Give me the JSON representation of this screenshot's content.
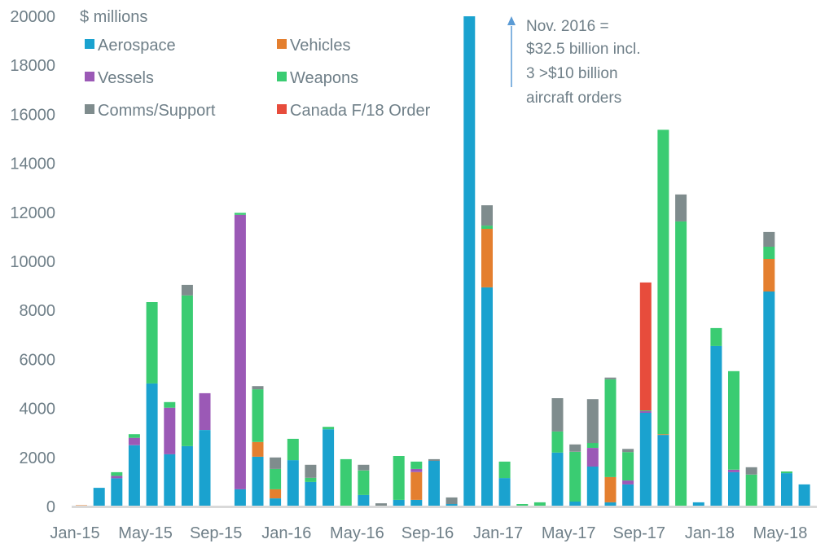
{
  "chart_data": {
    "type": "bar",
    "stacked": true,
    "title": "",
    "unit_label": "$ millions",
    "xlabel": "",
    "ylabel": "$ millions",
    "ylim": [
      0,
      20000
    ],
    "yticks": [
      0,
      2000,
      4000,
      6000,
      8000,
      10000,
      12000,
      14000,
      16000,
      18000,
      20000
    ],
    "grid": false,
    "legend_position": "top-left",
    "categories": [
      "Jan-15",
      "Feb-15",
      "Mar-15",
      "Apr-15",
      "May-15",
      "Jun-15",
      "Jul-15",
      "Aug-15",
      "Sep-15",
      "Oct-15",
      "Nov-15",
      "Dec-15",
      "Jan-16",
      "Feb-16",
      "Mar-16",
      "Apr-16",
      "May-16",
      "Jun-16",
      "Jul-16",
      "Aug-16",
      "Sep-16",
      "Oct-16",
      "Nov-16",
      "Dec-16",
      "Jan-17",
      "Feb-17",
      "Mar-17",
      "Apr-17",
      "May-17",
      "Jun-17",
      "Jul-17",
      "Aug-17",
      "Sep-17",
      "Oct-17",
      "Nov-17",
      "Dec-17",
      "Jan-18",
      "Feb-18",
      "Mar-18",
      "Apr-18",
      "May-18",
      "Jun-18"
    ],
    "xtick_labels": [
      "Jan-15",
      "May-15",
      "Sep-15",
      "Jan-16",
      "May-16",
      "Sep-16",
      "Jan-17",
      "May-17",
      "Sep-17",
      "Jan-18",
      "May-18"
    ],
    "series": [
      {
        "name": "Aerospace",
        "color": "#1aa2cf",
        "values": [
          0,
          760,
          1150,
          2500,
          5020,
          2130,
          2460,
          3120,
          0,
          700,
          2030,
          330,
          1890,
          1000,
          3150,
          0,
          470,
          0,
          270,
          270,
          1860,
          100,
          32500,
          8940,
          1160,
          0,
          0,
          2200,
          200,
          1630,
          170,
          900,
          3820,
          2920,
          0,
          170,
          6550,
          1400,
          0,
          8770,
          1360,
          900
        ]
      },
      {
        "name": "Vehicles",
        "color": "#e47f2f",
        "values": [
          50,
          0,
          0,
          0,
          0,
          0,
          0,
          0,
          0,
          0,
          600,
          370,
          0,
          0,
          0,
          0,
          0,
          0,
          0,
          1130,
          0,
          0,
          0,
          2390,
          0,
          0,
          0,
          0,
          0,
          0,
          1030,
          0,
          0,
          30,
          0,
          0,
          0,
          0,
          0,
          1330,
          0,
          0
        ]
      },
      {
        "name": "Vessels",
        "color": "#9b59b6",
        "values": [
          0,
          0,
          100,
          300,
          0,
          1900,
          0,
          1500,
          0,
          11200,
          0,
          0,
          0,
          0,
          0,
          0,
          0,
          0,
          0,
          130,
          0,
          0,
          0,
          0,
          0,
          0,
          0,
          0,
          0,
          760,
          0,
          160,
          70,
          0,
          0,
          0,
          0,
          100,
          0,
          0,
          0,
          0
        ]
      },
      {
        "name": "Weapons",
        "color": "#3acc72",
        "values": [
          0,
          0,
          150,
          150,
          3320,
          230,
          6150,
          0,
          0,
          80,
          2150,
          830,
          870,
          170,
          100,
          1930,
          1000,
          0,
          1790,
          300,
          0,
          0,
          0,
          130,
          670,
          100,
          170,
          860,
          2030,
          200,
          3990,
          1160,
          30,
          12420,
          11630,
          0,
          730,
          4020,
          1300,
          500,
          70,
          0
        ]
      },
      {
        "name": "Comms/Support",
        "color": "#7f8c8d",
        "values": [
          0,
          0,
          0,
          0,
          0,
          0,
          430,
          0,
          0,
          0,
          130,
          470,
          0,
          530,
          0,
          0,
          230,
          130,
          0,
          0,
          70,
          270,
          0,
          830,
          0,
          0,
          0,
          1360,
          300,
          1790,
          70,
          130,
          0,
          0,
          1100,
          0,
          0,
          0,
          300,
          600,
          0,
          0
        ]
      },
      {
        "name": "Canada F/18 Order",
        "color": "#e74c3c",
        "values": [
          0,
          0,
          0,
          0,
          0,
          0,
          0,
          0,
          0,
          0,
          0,
          0,
          0,
          0,
          0,
          0,
          0,
          0,
          0,
          0,
          0,
          0,
          0,
          0,
          0,
          0,
          0,
          0,
          0,
          0,
          0,
          0,
          5220,
          0,
          0,
          0,
          0,
          0,
          0,
          0,
          0,
          0
        ]
      }
    ],
    "annotations": [
      {
        "target": "Nov-16",
        "type": "arrow-up",
        "lines": [
          "Nov. 2016 =",
          "$32.5 billion incl.",
          "3 >$10 billion",
          "aircraft  orders"
        ]
      }
    ],
    "axis_color": "#d9d9d9",
    "text_color": "#6f7f88"
  }
}
